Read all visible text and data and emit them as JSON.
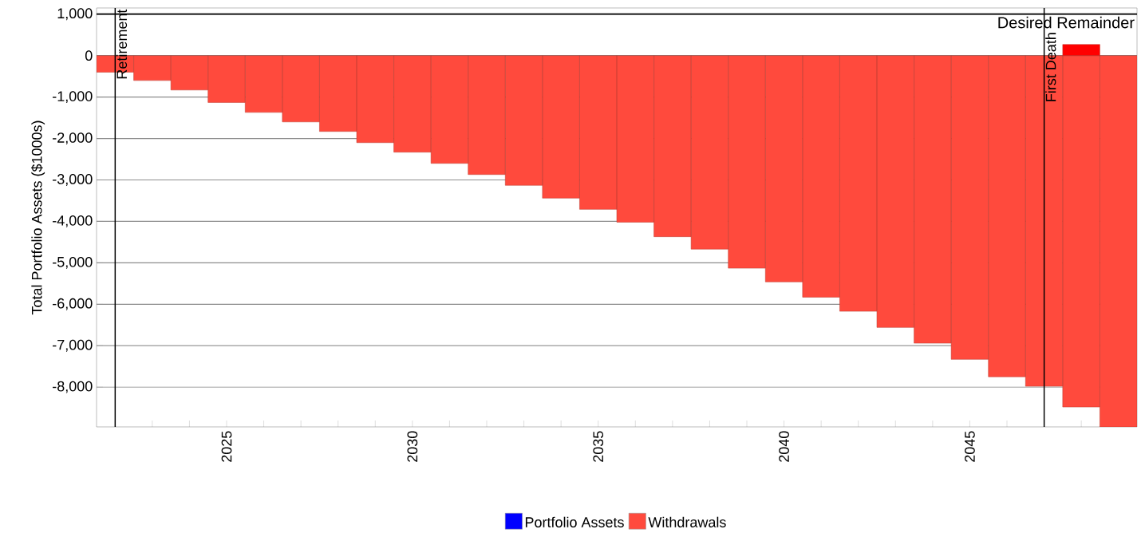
{
  "chart_data": {
    "type": "bar",
    "ylabel": "Total Portfolio Assets ($1000s)",
    "x": [
      2022,
      2023,
      2024,
      2025,
      2026,
      2027,
      2028,
      2029,
      2030,
      2031,
      2032,
      2033,
      2034,
      2035,
      2036,
      2037,
      2038,
      2039,
      2040,
      2041,
      2042,
      2043,
      2044,
      2045,
      2046,
      2047,
      2048,
      2049
    ],
    "series": [
      {
        "name": "Portfolio Assets",
        "color": "#0000ff",
        "values": [
          null,
          null,
          null,
          null,
          null,
          null,
          null,
          null,
          null,
          null,
          null,
          null,
          null,
          null,
          null,
          null,
          null,
          null,
          null,
          null,
          null,
          null,
          null,
          null,
          null,
          null,
          null,
          null
        ]
      },
      {
        "name": "Withdrawals",
        "color": "#ff4a3d",
        "values": [
          -400,
          -600,
          -830,
          -1130,
          -1370,
          -1600,
          -1830,
          -2100,
          -2330,
          -2600,
          -2870,
          -3130,
          -3440,
          -3710,
          -4020,
          -4370,
          -4670,
          -5130,
          -5460,
          -5830,
          -6170,
          -6560,
          -6940,
          -7330,
          -7750,
          -7980,
          -8480,
          -8960
        ]
      },
      {
        "color": "#ff0000",
        "values": [
          null,
          null,
          null,
          null,
          null,
          null,
          null,
          null,
          null,
          null,
          null,
          null,
          null,
          null,
          null,
          null,
          null,
          null,
          null,
          null,
          null,
          null,
          null,
          null,
          null,
          null,
          270,
          null
        ]
      }
    ],
    "xlim": [
      2021.5,
      2049.5
    ],
    "xticks": [
      {
        "value": 2022,
        "label": null
      },
      {
        "value": 2023,
        "label": null
      },
      {
        "value": 2024,
        "label": null
      },
      2025,
      {
        "value": 2026,
        "label": null
      },
      {
        "value": 2027,
        "label": null
      },
      {
        "value": 2028,
        "label": null
      },
      {
        "value": 2029,
        "label": null
      },
      2030,
      {
        "value": 2031,
        "label": null
      },
      {
        "value": 2032,
        "label": null
      },
      {
        "value": 2033,
        "label": null
      },
      {
        "value": 2034,
        "label": null
      },
      2035,
      {
        "value": 2036,
        "label": null
      },
      {
        "value": 2037,
        "label": null
      },
      {
        "value": 2038,
        "label": null
      },
      {
        "value": 2039,
        "label": null
      },
      2040,
      {
        "value": 2041,
        "label": null
      },
      {
        "value": 2042,
        "label": null
      },
      {
        "value": 2043,
        "label": null
      },
      {
        "value": 2044,
        "label": null
      },
      2045,
      {
        "value": 2046,
        "label": null
      },
      {
        "value": 2047,
        "label": null
      },
      {
        "value": 2048,
        "label": null
      },
      {
        "value": 2049,
        "label": null
      }
    ],
    "ylim": [
      -8960,
      1150
    ],
    "yticks": [
      {
        "value": 1000,
        "label": "1,000"
      },
      0,
      {
        "value": -1000,
        "label": "-1,000"
      },
      {
        "value": -2000,
        "label": "-2,000"
      },
      {
        "value": -3000,
        "label": "-3,000"
      },
      {
        "value": -4000,
        "label": "-4,000"
      },
      {
        "value": -5000,
        "label": "-5,000"
      },
      {
        "value": -6000,
        "label": "-6,000"
      },
      {
        "value": -7000,
        "label": "-7,000"
      },
      {
        "value": -8000,
        "label": "-8,000"
      }
    ],
    "grid": "y",
    "legend": "bottom",
    "ref_lines": [
      {
        "axis": "x",
        "value": 2022,
        "label": "Retirement",
        "color": "#000000"
      },
      {
        "axis": "x",
        "value": 2047,
        "label": "First Death",
        "color": "#000000"
      },
      {
        "axis": "y",
        "value": 1000,
        "label": "Desired Remainder",
        "color": "#000000"
      }
    ]
  }
}
